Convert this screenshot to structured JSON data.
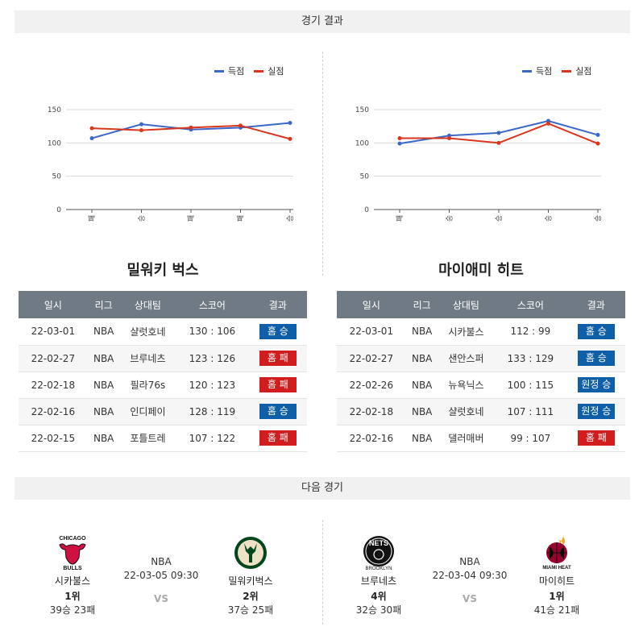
{
  "sections": {
    "results_title": "경기 결과",
    "next_title": "다음 경기"
  },
  "legend": {
    "scored": "득점",
    "conceded": "실점"
  },
  "colors": {
    "scored": "#3b68c8",
    "conceded": "#d9361e",
    "win": "#0f5fa8",
    "loss": "#d11d1d",
    "header": "#6f7a85"
  },
  "chart_data": [
    {
      "type": "line",
      "x": [
        "패",
        "승",
        "패",
        "패",
        "승"
      ],
      "series": [
        {
          "name": "득점",
          "values": [
            107,
            128,
            120,
            123,
            130
          ]
        },
        {
          "name": "실점",
          "values": [
            122,
            119,
            123,
            126,
            106
          ]
        }
      ],
      "yticks": [
        "150",
        "100",
        "50",
        "0"
      ],
      "ylim": [
        0,
        150
      ],
      "grid": true,
      "legend_position": "top-right"
    },
    {
      "type": "line",
      "x": [
        "패",
        "승",
        "승",
        "승",
        "승"
      ],
      "series": [
        {
          "name": "득점",
          "values": [
            99,
            111,
            115,
            133,
            112
          ]
        },
        {
          "name": "실점",
          "values": [
            107,
            107,
            100,
            129,
            99
          ]
        }
      ],
      "yticks": [
        "150",
        "100",
        "50",
        "0"
      ],
      "ylim": [
        0,
        150
      ],
      "grid": true,
      "legend_position": "top-right"
    }
  ],
  "teams": [
    {
      "name": "밀워키 벅스",
      "headers": [
        "일시",
        "리그",
        "상대팀",
        "스코어",
        "결과"
      ],
      "rows": [
        {
          "date": "22-03-01",
          "league": "NBA",
          "opponent": "샬럿호네",
          "score": "130 : 106",
          "result": "홈 승",
          "win": true
        },
        {
          "date": "22-02-27",
          "league": "NBA",
          "opponent": "브루네츠",
          "score": "123 : 126",
          "result": "홈 패",
          "win": false
        },
        {
          "date": "22-02-18",
          "league": "NBA",
          "opponent": "필라76s",
          "score": "120 : 123",
          "result": "홈 패",
          "win": false
        },
        {
          "date": "22-02-16",
          "league": "NBA",
          "opponent": "인디페이",
          "score": "128 : 119",
          "result": "홈 승",
          "win": true
        },
        {
          "date": "22-02-15",
          "league": "NBA",
          "opponent": "포틀트레",
          "score": "107 : 122",
          "result": "홈 패",
          "win": false
        }
      ]
    },
    {
      "name": "마이애미 히트",
      "headers": [
        "일시",
        "리그",
        "상대팀",
        "스코어",
        "결과"
      ],
      "rows": [
        {
          "date": "22-03-01",
          "league": "NBA",
          "opponent": "시카불스",
          "score": "112 : 99",
          "result": "홈 승",
          "win": true
        },
        {
          "date": "22-02-27",
          "league": "NBA",
          "opponent": "샌안스퍼",
          "score": "133 : 129",
          "result": "홈 승",
          "win": true
        },
        {
          "date": "22-02-26",
          "league": "NBA",
          "opponent": "뉴욕닉스",
          "score": "100 : 115",
          "result": "원정 승",
          "win": true
        },
        {
          "date": "22-02-18",
          "league": "NBA",
          "opponent": "샬럿호네",
          "score": "107 : 111",
          "result": "원정 승",
          "win": true
        },
        {
          "date": "22-02-16",
          "league": "NBA",
          "opponent": "댈러매버",
          "score": "99 : 107",
          "result": "홈 패",
          "win": false
        }
      ]
    }
  ],
  "next_games": [
    {
      "league": "NBA",
      "datetime": "22-03-05 09:30",
      "vs": "VS",
      "home": {
        "name": "시카불스",
        "rank": "1위",
        "record": "39승 23패",
        "logo_icon": "chicago-bulls-logo",
        "logo_text": "CHICAGO BULLS"
      },
      "away": {
        "name": "밀워키벅스",
        "rank": "2위",
        "record": "37승 25패",
        "logo_icon": "milwaukee-bucks-logo"
      }
    },
    {
      "league": "NBA",
      "datetime": "22-03-04 09:30",
      "vs": "VS",
      "home": {
        "name": "브루네츠",
        "rank": "4위",
        "record": "32승 30패",
        "logo_icon": "brooklyn-nets-logo",
        "logo_text": "NETS BROOKLYN"
      },
      "away": {
        "name": "마이히트",
        "rank": "1위",
        "record": "41승 21패",
        "logo_icon": "miami-heat-logo",
        "logo_text": "MIAMI HEAT"
      }
    }
  ]
}
